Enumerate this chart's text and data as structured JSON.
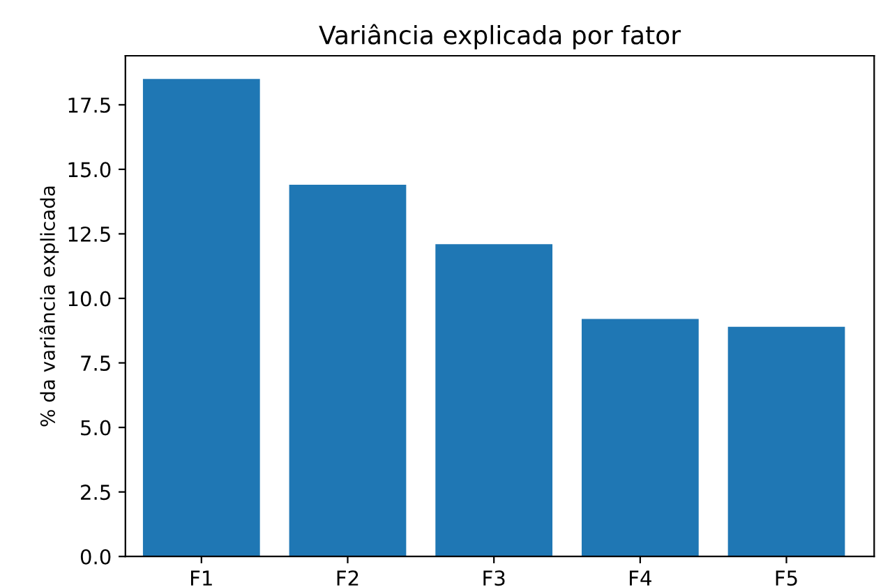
{
  "chart_data": {
    "type": "bar",
    "title": "Variância explicada por fator",
    "ylabel": "% da variância explicada",
    "categories": [
      "F1",
      "F2",
      "F3",
      "F4",
      "F5"
    ],
    "values": [
      18.5,
      14.4,
      12.1,
      9.2,
      8.9
    ],
    "color": "#1f77b4",
    "ylim": [
      0,
      19.4
    ],
    "yticks": [
      {
        "value": 0,
        "label": "0.0"
      },
      2.5,
      {
        "value": 5,
        "label": "5.0"
      },
      7.5,
      {
        "value": 10,
        "label": "10.0"
      },
      12.5,
      {
        "value": 15,
        "label": "15.0"
      },
      17.5
    ],
    "grid": false,
    "legend": false
  }
}
